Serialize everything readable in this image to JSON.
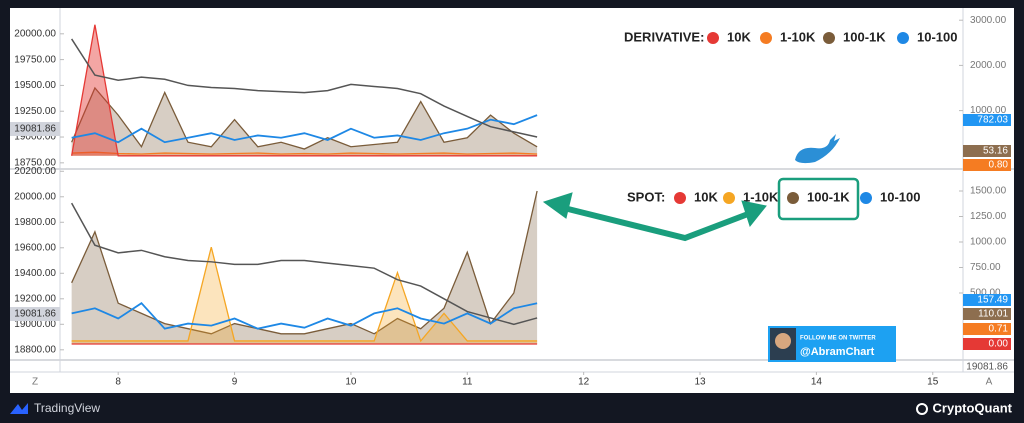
{
  "chart_data": [
    {
      "type": "line",
      "legend_title": "DERIVATIVE:",
      "x": [
        7.6,
        7.8,
        8,
        8.2,
        8.4,
        8.6,
        8.8,
        9,
        9.2,
        9.4,
        9.6,
        9.8,
        10,
        10.2,
        10.4,
        10.6,
        10.8,
        11,
        11.2,
        11.4,
        11.6
      ],
      "xlim": [
        7.5,
        15.26
      ],
      "ylim": [
        18700,
        20250
      ],
      "yticks": [
        {
          "value": 18750,
          "label": "18750.00"
        },
        {
          "value": 19000,
          "label": "19000.00"
        },
        {
          "value": 19250,
          "label": "19250.00"
        },
        {
          "value": 19500,
          "label": "19500.00"
        },
        {
          "value": 19750,
          "label": "19750.00"
        },
        {
          "value": 20000,
          "label": "20000.00"
        }
      ],
      "y2lim": [
        -270,
        3270
      ],
      "y2ticks": [
        {
          "value": 1000,
          "label": "1000.00"
        },
        {
          "value": 2000,
          "label": "2000.00"
        },
        {
          "value": 3000,
          "label": "3000.00"
        }
      ],
      "price": {
        "color": "#555555",
        "values": [
          19950,
          19600,
          19550,
          19580,
          19560,
          19500,
          19480,
          19470,
          19450,
          19440,
          19430,
          19450,
          19510,
          19490,
          19470,
          19420,
          19300,
          19200,
          19100,
          19050,
          19000
        ]
      },
      "last_price_label": "19081.86",
      "series": [
        {
          "name": "10K",
          "color": "#e53935",
          "axis": "y2",
          "values": [
            0,
            2900,
            0,
            0,
            0,
            0,
            0,
            0,
            0,
            0,
            0,
            0,
            0,
            0,
            0,
            0,
            0,
            0,
            0,
            0,
            0
          ]
        },
        {
          "name": "1-10K",
          "color": "#f57c22",
          "axis": "y2",
          "values": [
            60,
            80,
            50,
            40,
            60,
            50,
            40,
            50,
            60,
            40,
            50,
            40,
            60,
            50,
            40,
            50,
            60,
            40,
            50,
            60,
            40
          ]
        },
        {
          "name": "100-1K",
          "color": "#7a5c3a",
          "axis": "y2",
          "values": [
            300,
            1500,
            900,
            200,
            1400,
            300,
            200,
            800,
            200,
            300,
            150,
            400,
            200,
            250,
            300,
            1200,
            300,
            400,
            900,
            500,
            200
          ]
        },
        {
          "name": "10-100",
          "color": "#1e88e5",
          "axis": "y2",
          "values": [
            400,
            500,
            300,
            600,
            300,
            400,
            500,
            350,
            450,
            400,
            500,
            350,
            600,
            400,
            450,
            350,
            500,
            600,
            800,
            700,
            900
          ]
        }
      ],
      "tags": [
        {
          "label": "782.03",
          "color": "#2196f3"
        },
        {
          "label": "53.16",
          "color": "#8d6e4f"
        },
        {
          "label": "0.80",
          "color": "#f57c22"
        }
      ]
    },
    {
      "type": "line",
      "legend_title": "SPOT:",
      "x": [
        7.6,
        7.8,
        8,
        8.2,
        8.4,
        8.6,
        8.8,
        9,
        9.2,
        9.4,
        9.6,
        9.8,
        10,
        10.2,
        10.4,
        10.6,
        10.8,
        11,
        11.2,
        11.4,
        11.6
      ],
      "xlim": [
        7.5,
        15.26
      ],
      "xticks": [
        8,
        9,
        10,
        11,
        12,
        13,
        14,
        15
      ],
      "ylim": [
        18720,
        20210
      ],
      "yticks": [
        {
          "value": 18800,
          "label": "18800.00"
        },
        {
          "value": 19000,
          "label": "19000.00"
        },
        {
          "value": 19200,
          "label": "19200.00"
        },
        {
          "value": 19400,
          "label": "19400.00"
        },
        {
          "value": 19600,
          "label": "19600.00"
        },
        {
          "value": 19800,
          "label": "19800.00"
        },
        {
          "value": 20000,
          "label": "20000.00"
        },
        {
          "value": 20200,
          "label": "20200.00"
        }
      ],
      "y2lim": [
        -157,
        1706
      ],
      "y2ticks": [
        {
          "value": 500,
          "label": "500.00"
        },
        {
          "value": 750,
          "label": "750.00"
        },
        {
          "value": 1000,
          "label": "1000.00"
        },
        {
          "value": 1250,
          "label": "1250.00"
        },
        {
          "value": 1500,
          "label": "1500.00"
        }
      ],
      "price": {
        "color": "#555555",
        "values": [
          19950,
          19620,
          19560,
          19580,
          19530,
          19500,
          19490,
          19470,
          19470,
          19500,
          19500,
          19480,
          19460,
          19440,
          19350,
          19300,
          19200,
          19100,
          19050,
          19000,
          19050
        ]
      },
      "last_price_label": "19081.86",
      "bottom_right_label": "19081.86",
      "series": [
        {
          "name": "10K",
          "color": "#e53935",
          "axis": "y2",
          "values": [
            0,
            0,
            0,
            0,
            0,
            0,
            0,
            0,
            0,
            0,
            0,
            0,
            0,
            0,
            0,
            0,
            0,
            0,
            0,
            0,
            0
          ]
        },
        {
          "name": "1-10K",
          "color": "#f5a623",
          "axis": "y2",
          "values": [
            30,
            30,
            30,
            30,
            30,
            30,
            950,
            30,
            30,
            30,
            30,
            30,
            30,
            30,
            700,
            30,
            300,
            30,
            30,
            30,
            30
          ]
        },
        {
          "name": "100-1K",
          "color": "#7a5c3a",
          "axis": "y2",
          "values": [
            600,
            1100,
            400,
            300,
            200,
            150,
            100,
            200,
            150,
            100,
            100,
            150,
            200,
            100,
            250,
            150,
            350,
            900,
            200,
            500,
            1500
          ]
        },
        {
          "name": "10-100",
          "color": "#1e88e5",
          "axis": "y2",
          "values": [
            300,
            350,
            250,
            400,
            150,
            200,
            180,
            250,
            150,
            200,
            160,
            250,
            180,
            300,
            350,
            250,
            200,
            300,
            200,
            350,
            400
          ]
        }
      ],
      "tags": [
        {
          "label": "157.49",
          "color": "#2196f3"
        },
        {
          "label": "110.01",
          "color": "#8d6e4f"
        },
        {
          "label": "0.71",
          "color": "#f57c22"
        },
        {
          "label": "0.00",
          "color": "#e53935"
        }
      ]
    }
  ],
  "axis_corners": [
    "Z",
    "A"
  ],
  "promo": {
    "follow": "FOLLOW ME ON TWITTER",
    "handle": "@AbramChart"
  },
  "branding": {
    "left": "TradingView",
    "right": "CryptoQuant"
  }
}
